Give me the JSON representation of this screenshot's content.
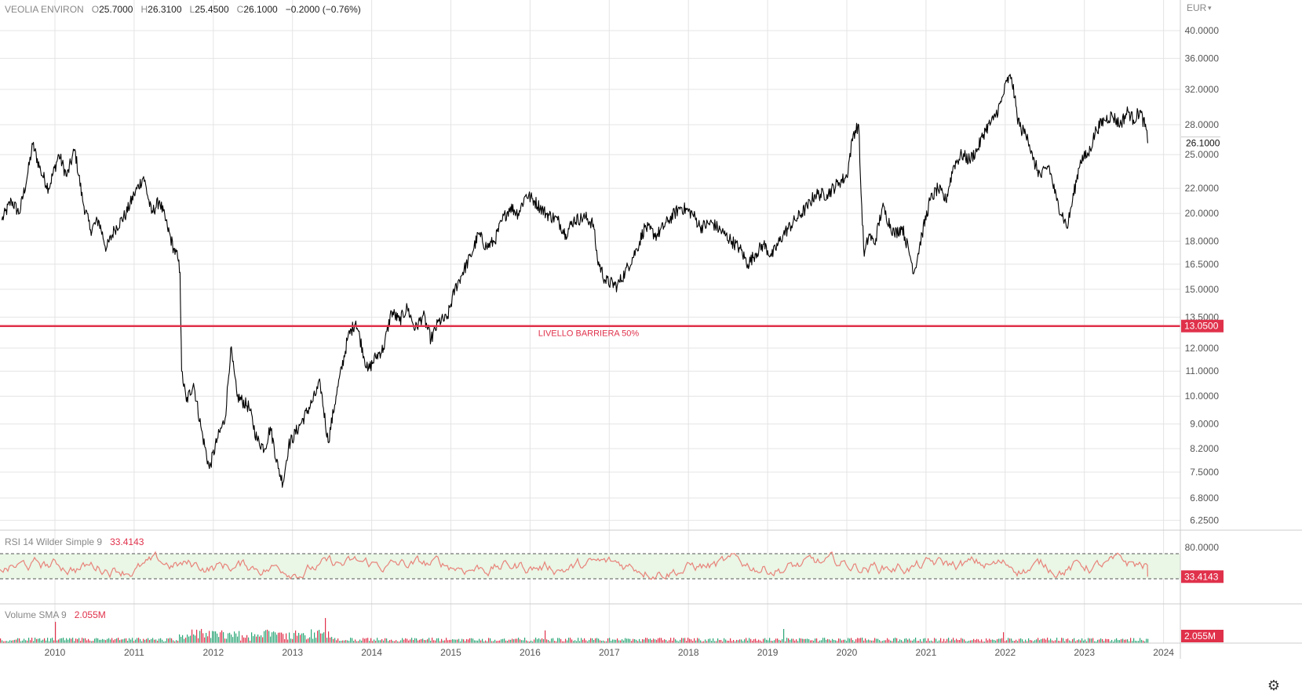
{
  "legend": {
    "symbol": "VEOLIA ENVIRON",
    "open_key": "O",
    "open": "25.7000",
    "high_key": "H",
    "high": "26.3100",
    "low_key": "L",
    "low": "25.4500",
    "close_key": "C",
    "close": "26.1000",
    "change": "−0.2000 (−0.76%)"
  },
  "currency": "EUR",
  "barrier": {
    "label": "LIVELLO BARRIERA 50%",
    "value": 13.05,
    "value_label": "13.0500",
    "color": "#e0314b"
  },
  "last_price_label": "26.1000",
  "rsi": {
    "label": "RSI 14 Wilder Simple 9",
    "value_label": "33.4143",
    "value": 33.4143,
    "ticks": [
      "80.0000"
    ],
    "upper_band": 70,
    "lower_band": 30,
    "color": "#e8837a"
  },
  "volume": {
    "label": "Volume SMA 9",
    "value_label": "2.055M"
  },
  "colors": {
    "price_line": "#000000",
    "grid": "#e4e4e4",
    "rsi_band_fill": "#eaf6e6",
    "vol_up": "#2aa676",
    "vol_down": "#e0314b",
    "accent": "#e0314b"
  },
  "chart_data": {
    "type": "line",
    "title": "",
    "scale": "log",
    "x_ticks": [
      "2010",
      "2011",
      "2012",
      "2013",
      "2014",
      "2015",
      "2016",
      "2017",
      "2018",
      "2019",
      "2020",
      "2021",
      "2022",
      "2023",
      "2024"
    ],
    "y_ticks": [
      "40.0000",
      "36.0000",
      "32.0000",
      "28.0000",
      "25.0000",
      "22.0000",
      "20.0000",
      "18.0000",
      "16.5000",
      "15.0000",
      "13.5000",
      "12.0000",
      "11.0000",
      "10.0000",
      "9.0000",
      "8.2000",
      "7.5000",
      "6.8000",
      "6.2500"
    ],
    "ylim": [
      6.0,
      45.0
    ],
    "series": [
      {
        "values": [
          [
            2009.33,
            19.5
          ],
          [
            2009.45,
            21.0
          ],
          [
            2009.55,
            20.0
          ],
          [
            2009.65,
            23.0
          ],
          [
            2009.72,
            26.0
          ],
          [
            2009.82,
            23.5
          ],
          [
            2009.92,
            22.0
          ],
          [
            2010.05,
            25.0
          ],
          [
            2010.15,
            23.0
          ],
          [
            2010.25,
            25.5
          ],
          [
            2010.35,
            21.0
          ],
          [
            2010.45,
            18.8
          ],
          [
            2010.55,
            19.5
          ],
          [
            2010.65,
            17.5
          ],
          [
            2010.75,
            18.8
          ],
          [
            2010.9,
            20.0
          ],
          [
            2011.0,
            21.5
          ],
          [
            2011.12,
            23.0
          ],
          [
            2011.22,
            20.0
          ],
          [
            2011.32,
            21.0
          ],
          [
            2011.42,
            19.0
          ],
          [
            2011.5,
            17.5
          ],
          [
            2011.55,
            16.9
          ],
          [
            2011.58,
            16.0
          ],
          [
            2011.6,
            11.0
          ],
          [
            2011.66,
            9.8
          ],
          [
            2011.75,
            10.5
          ],
          [
            2011.85,
            8.8
          ],
          [
            2011.95,
            7.6
          ],
          [
            2012.05,
            8.5
          ],
          [
            2012.15,
            9.2
          ],
          [
            2012.22,
            12.0
          ],
          [
            2012.3,
            10.0
          ],
          [
            2012.45,
            9.6
          ],
          [
            2012.55,
            8.5
          ],
          [
            2012.65,
            8.2
          ],
          [
            2012.72,
            8.9
          ],
          [
            2012.82,
            7.6
          ],
          [
            2012.88,
            7.2
          ],
          [
            2012.95,
            8.3
          ],
          [
            2013.1,
            9.0
          ],
          [
            2013.25,
            9.8
          ],
          [
            2013.35,
            10.5
          ],
          [
            2013.45,
            8.4
          ],
          [
            2013.55,
            10.0
          ],
          [
            2013.7,
            12.5
          ],
          [
            2013.8,
            13.3
          ],
          [
            2013.95,
            11.0
          ],
          [
            2014.05,
            11.6
          ],
          [
            2014.15,
            12.0
          ],
          [
            2014.25,
            13.8
          ],
          [
            2014.35,
            13.3
          ],
          [
            2014.45,
            14.0
          ],
          [
            2014.55,
            12.9
          ],
          [
            2014.65,
            13.6
          ],
          [
            2014.75,
            12.4
          ],
          [
            2014.85,
            13.3
          ],
          [
            2014.95,
            13.4
          ],
          [
            2015.05,
            15.0
          ],
          [
            2015.15,
            16.0
          ],
          [
            2015.25,
            17.0
          ],
          [
            2015.35,
            18.5
          ],
          [
            2015.45,
            17.6
          ],
          [
            2015.55,
            18.0
          ],
          [
            2015.65,
            19.5
          ],
          [
            2015.75,
            20.5
          ],
          [
            2015.85,
            20.0
          ],
          [
            2015.95,
            21.5
          ],
          [
            2016.05,
            21.0
          ],
          [
            2016.2,
            20.0
          ],
          [
            2016.35,
            19.5
          ],
          [
            2016.45,
            18.5
          ],
          [
            2016.55,
            19.5
          ],
          [
            2016.7,
            19.7
          ],
          [
            2016.8,
            19.2
          ],
          [
            2016.85,
            16.8
          ],
          [
            2016.95,
            15.5
          ],
          [
            2017.1,
            15.2
          ],
          [
            2017.2,
            16.0
          ],
          [
            2017.35,
            17.5
          ],
          [
            2017.45,
            19.0
          ],
          [
            2017.6,
            18.4
          ],
          [
            2017.75,
            19.5
          ],
          [
            2017.9,
            20.5
          ],
          [
            2018.05,
            20.0
          ],
          [
            2018.15,
            19.0
          ],
          [
            2018.3,
            19.3
          ],
          [
            2018.45,
            18.5
          ],
          [
            2018.55,
            18.0
          ],
          [
            2018.65,
            17.5
          ],
          [
            2018.75,
            16.5
          ],
          [
            2018.85,
            17.2
          ],
          [
            2018.95,
            17.8
          ],
          [
            2019.05,
            17.0
          ],
          [
            2019.2,
            18.5
          ],
          [
            2019.35,
            19.5
          ],
          [
            2019.5,
            20.5
          ],
          [
            2019.6,
            21.5
          ],
          [
            2019.75,
            21.5
          ],
          [
            2019.9,
            22.5
          ],
          [
            2020.0,
            23.0
          ],
          [
            2020.08,
            27.0
          ],
          [
            2020.15,
            28.0
          ],
          [
            2020.18,
            21.5
          ],
          [
            2020.22,
            17.0
          ],
          [
            2020.28,
            18.5
          ],
          [
            2020.35,
            17.8
          ],
          [
            2020.45,
            20.5
          ],
          [
            2020.6,
            18.5
          ],
          [
            2020.7,
            19.0
          ],
          [
            2020.8,
            17.0
          ],
          [
            2020.85,
            16.0
          ],
          [
            2020.95,
            18.5
          ],
          [
            2021.05,
            21.0
          ],
          [
            2021.15,
            22.0
          ],
          [
            2021.25,
            21.0
          ],
          [
            2021.35,
            24.0
          ],
          [
            2021.45,
            25.0
          ],
          [
            2021.55,
            24.5
          ],
          [
            2021.65,
            25.5
          ],
          [
            2021.75,
            27.5
          ],
          [
            2021.85,
            28.5
          ],
          [
            2021.95,
            30.5
          ],
          [
            2022.02,
            33.0
          ],
          [
            2022.08,
            33.5
          ],
          [
            2022.12,
            31.0
          ],
          [
            2022.15,
            29.0
          ],
          [
            2022.2,
            27.5
          ],
          [
            2022.28,
            27.0
          ],
          [
            2022.35,
            24.5
          ],
          [
            2022.45,
            23.0
          ],
          [
            2022.55,
            24.0
          ],
          [
            2022.65,
            21.0
          ],
          [
            2022.75,
            19.5
          ],
          [
            2022.78,
            18.9
          ],
          [
            2022.85,
            21.0
          ],
          [
            2022.95,
            24.5
          ],
          [
            2023.05,
            25.0
          ],
          [
            2023.15,
            27.5
          ],
          [
            2023.25,
            28.5
          ],
          [
            2023.35,
            29.0
          ],
          [
            2023.45,
            28.0
          ],
          [
            2023.55,
            29.5
          ],
          [
            2023.62,
            28.5
          ],
          [
            2023.7,
            29.5
          ],
          [
            2023.78,
            27.5
          ],
          [
            2023.8,
            26.1
          ]
        ]
      }
    ]
  }
}
